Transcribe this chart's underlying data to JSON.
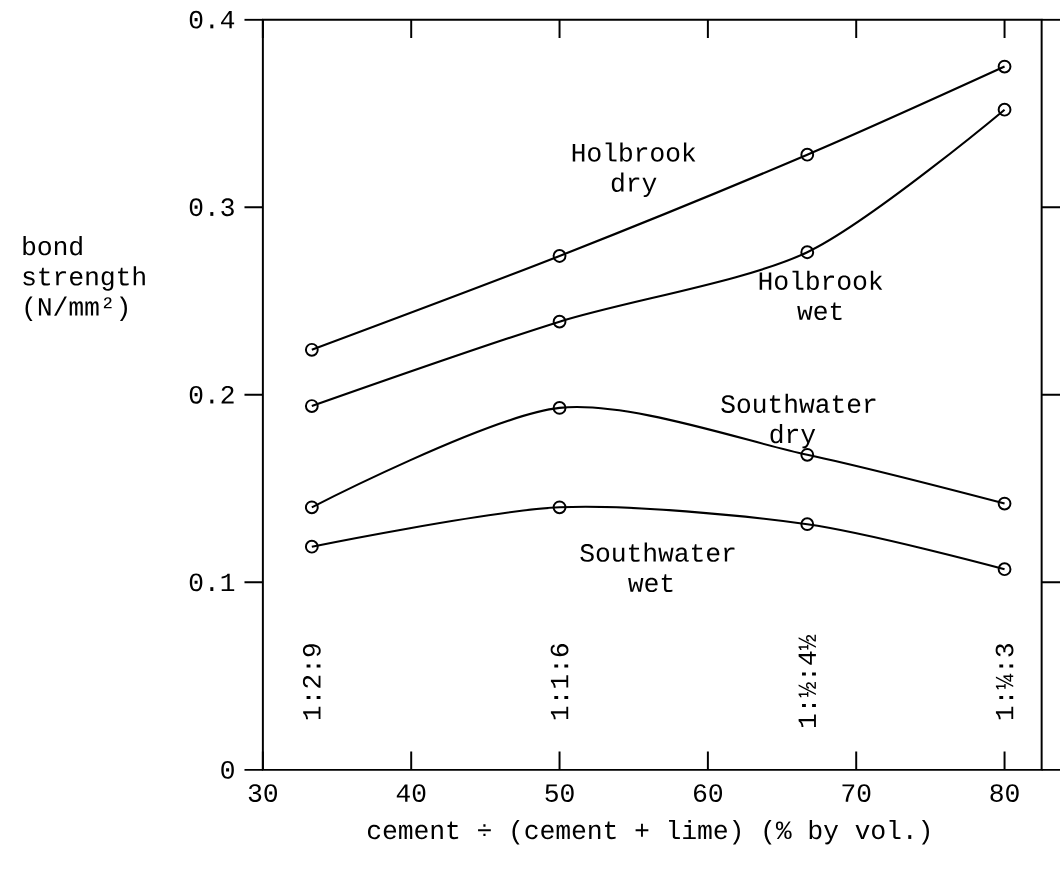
{
  "chart_data": {
    "type": "line",
    "xlabel": "cement ÷ (cement + lime) (% by vol.)",
    "ylabel": "bond strength (N/mm²)",
    "xlim": [
      30,
      82.5
    ],
    "ylim": [
      0,
      0.4
    ],
    "xticks": [
      30,
      40,
      50,
      60,
      70,
      80
    ],
    "yticks": [
      0,
      0.1,
      0.2,
      0.3,
      0.4
    ],
    "x": [
      33.3,
      50,
      66.7,
      80
    ],
    "marker": "circle",
    "series": [
      {
        "name": "Holbrook dry",
        "color": "#000000",
        "values": [
          0.224,
          0.274,
          0.328,
          0.375
        ]
      },
      {
        "name": "Holbrook wet",
        "color": "#000000",
        "values": [
          0.194,
          0.239,
          0.276,
          0.352
        ]
      },
      {
        "name": "Southwater dry",
        "color": "#000000",
        "values": [
          0.14,
          0.193,
          0.168,
          0.142
        ]
      },
      {
        "name": "Southwater wet",
        "color": "#000000",
        "values": [
          0.119,
          0.14,
          0.131,
          0.107
        ]
      }
    ],
    "annotations": [
      "1:2:9",
      "1:1:6",
      "1:½:4½",
      "1:¼:3"
    ]
  }
}
